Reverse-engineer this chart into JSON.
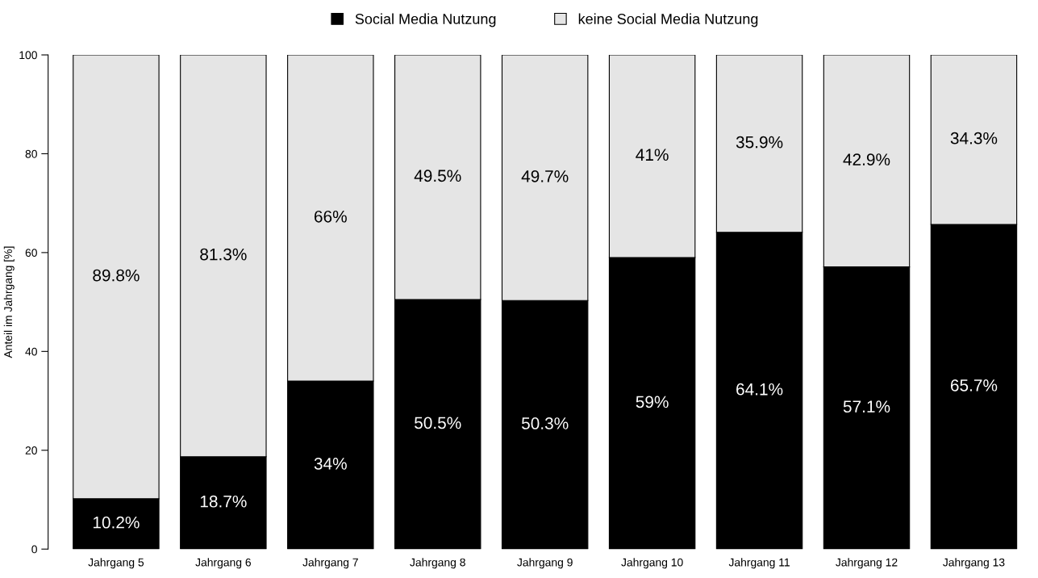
{
  "chart_data": {
    "type": "bar",
    "stacked": true,
    "ylabel": "Anteil im Jahrgang [%]",
    "categories": [
      "Jahrgang 5",
      "Jahrgang 6",
      "Jahrgang 7",
      "Jahrgang 8",
      "Jahrgang 9",
      "Jahrgang 10",
      "Jahrgang 11",
      "Jahrgang 12",
      "Jahrgang 13"
    ],
    "series": [
      {
        "name": "Social Media Nutzung",
        "color": "#000000",
        "values": [
          10.2,
          18.7,
          34,
          50.5,
          50.3,
          59,
          64.1,
          57.1,
          65.7
        ],
        "value_labels": [
          "10.2%",
          "18.7%",
          "34%",
          "50.5%",
          "50.3%",
          "59%",
          "64.1%",
          "57.1%",
          "65.7%"
        ]
      },
      {
        "name": "keine Social Media Nutzung",
        "color": "#e5e5e5",
        "values": [
          89.8,
          81.3,
          66,
          49.5,
          49.7,
          41,
          35.9,
          42.9,
          34.3
        ],
        "value_labels": [
          "89.8%",
          "81.3%",
          "66%",
          "49.5%",
          "49.7%",
          "41%",
          "35.9%",
          "42.9%",
          "34.3%"
        ]
      }
    ],
    "ylim": [
      0,
      100
    ],
    "yticks": [
      0,
      20,
      40,
      60,
      80,
      100
    ],
    "grid": false,
    "legend": "top"
  }
}
